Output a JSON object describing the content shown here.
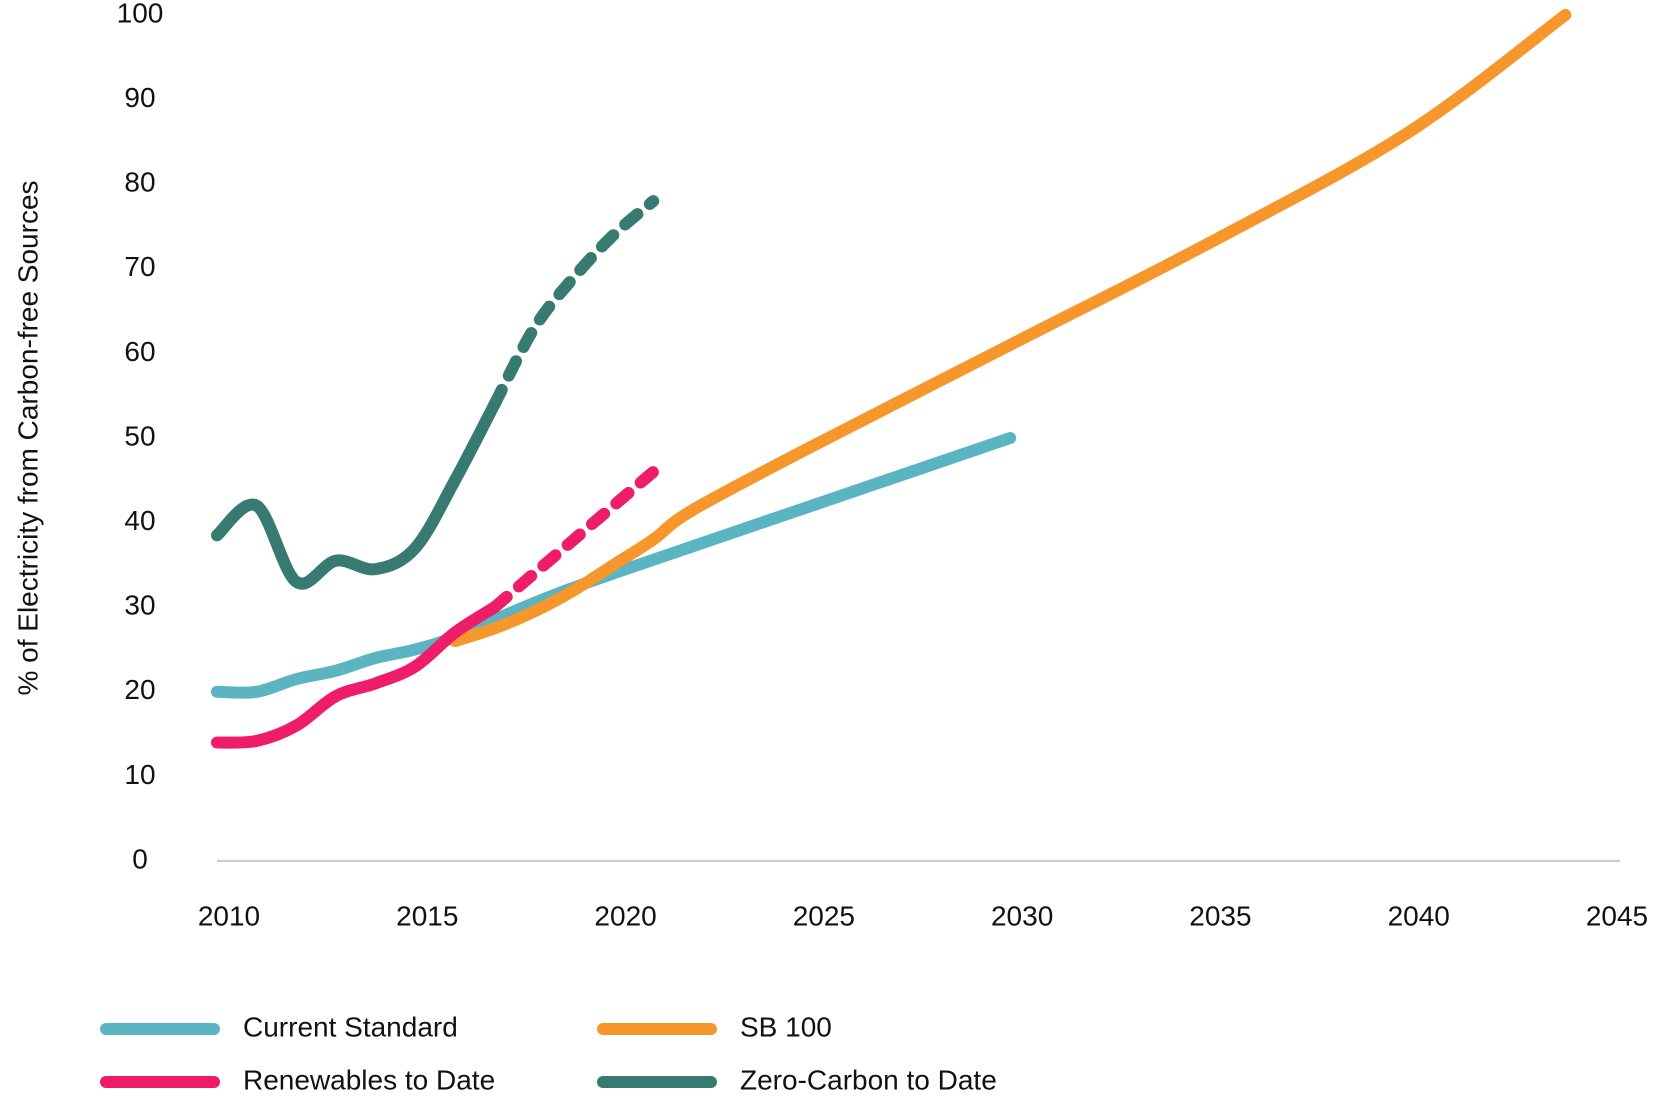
{
  "chart_data": {
    "type": "line",
    "y_label": "% of Electricity from Carbon-free Sources",
    "xlim": [
      2010,
      2045
    ],
    "xticks": [
      2010,
      2015,
      2020,
      2025,
      2030,
      2035,
      2040,
      2045
    ],
    "ylim": [
      0,
      100
    ],
    "yticks": [
      0,
      10,
      20,
      30,
      40,
      50,
      60,
      70,
      80,
      90,
      100
    ],
    "series": [
      {
        "name": "Current Standard",
        "color": "#5ab4c1",
        "x": [
          2010,
          2011,
          2012,
          2013,
          2014,
          2015,
          2016,
          2018,
          2020,
          2025,
          2030
        ],
        "values": [
          20,
          20,
          21.5,
          22.5,
          24,
          25,
          26.5,
          30.5,
          34,
          42,
          50
        ]
      },
      {
        "name": "SB 100",
        "color": "#f7962b",
        "x": [
          2016,
          2017,
          2018,
          2019,
          2020,
          2021,
          2022,
          2025,
          2030,
          2035,
          2040,
          2044
        ],
        "values": [
          26,
          27.5,
          29.5,
          32,
          35,
          38,
          41.5,
          49,
          61,
          73,
          86,
          100
        ]
      },
      {
        "name": "Renewables to Date",
        "color": "#ee1c69",
        "dashed_from_x": 2017,
        "x": [
          2010,
          2011,
          2012,
          2013,
          2014,
          2015,
          2016,
          2017,
          2018,
          2019,
          2020,
          2021
        ],
        "values": [
          14,
          14.2,
          16,
          19.5,
          21,
          23,
          27,
          30,
          34,
          38,
          42,
          46
        ]
      },
      {
        "name": "Zero-Carbon to Date",
        "color": "#367a72",
        "dashed_from_x": 2017,
        "x": [
          2010,
          2011,
          2012,
          2013,
          2014,
          2015,
          2016,
          2017,
          2018,
          2019,
          2020,
          2021
        ],
        "values": [
          38.5,
          42,
          33,
          35.5,
          34.5,
          37,
          45,
          54,
          63,
          69,
          74,
          78
        ]
      }
    ]
  }
}
